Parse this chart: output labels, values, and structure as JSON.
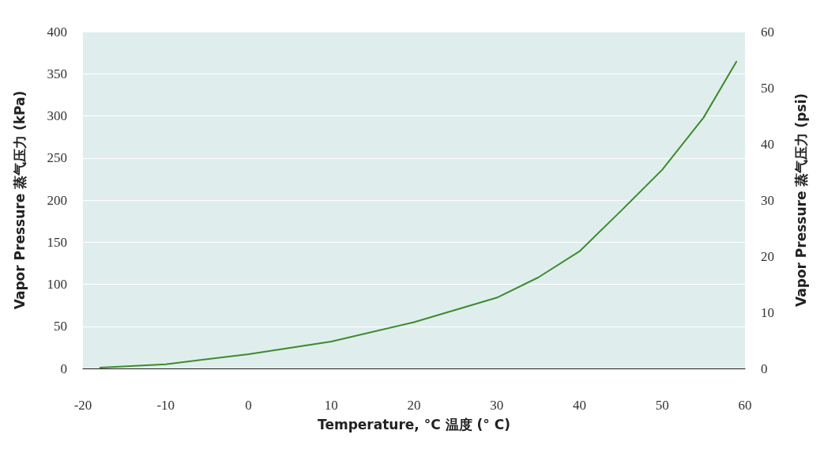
{
  "chart_data": {
    "type": "line",
    "xlabel": "Temperature, °C 温度 (° C)",
    "ylabel": "Vapor Pressure 蒸气压力 (kPa)",
    "y2label": "Vapor Pressure 蒸气压力 (psi)",
    "x": [
      -18,
      -10,
      0,
      10,
      20,
      30,
      35,
      40,
      45,
      50,
      55,
      59
    ],
    "series": [
      {
        "color": "#3e8a2e",
        "values": [
          1,
          5,
          17,
          32,
          55,
          84,
          108,
          139,
          187,
          236,
          298,
          365
        ]
      }
    ],
    "xlim": [
      -20,
      60
    ],
    "xticks": [
      -20,
      -10,
      0,
      10,
      20,
      30,
      40,
      50,
      60
    ],
    "ylim": [
      0,
      400
    ],
    "yticks": [
      0,
      50,
      100,
      150,
      200,
      250,
      300,
      350,
      400
    ],
    "y2lim": [
      0,
      60
    ],
    "y2ticks": [
      0,
      10,
      20,
      30,
      40,
      50,
      60
    ],
    "grid": "y",
    "marker": "none",
    "line_style": "solid"
  }
}
